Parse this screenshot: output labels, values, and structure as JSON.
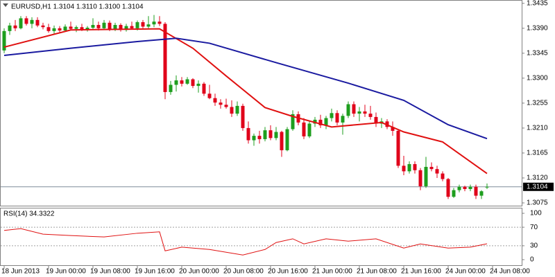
{
  "chart_data": [
    {
      "type": "candlestick",
      "header": "EURUSD,H1  1.3104 1.3110 1.3100 1.3104",
      "up_color": "#1e9e1e",
      "down_color": "#e0001a",
      "xlim": [
        -0.75,
        93.25
      ],
      "ylim": [
        1.307,
        1.3441
      ],
      "yticks": [
        {
          "value": 1.3435,
          "label": "1.3435"
        },
        {
          "value": 1.339,
          "label": "1.3390"
        },
        {
          "value": 1.3345,
          "label": "1.3345"
        },
        {
          "value": 1.33,
          "label": "1.3300"
        },
        {
          "value": 1.3255,
          "label": "1.3255"
        },
        {
          "value": 1.321,
          "label": "1.3210"
        },
        {
          "value": 1.3165,
          "label": "1.3165"
        },
        {
          "value": 1.312,
          "label": "1.3120"
        },
        {
          "value": 1.3075,
          "label": "1.3075"
        }
      ],
      "xticks": [
        {
          "value": 0,
          "label": "18 Jun 2013"
        },
        {
          "value": 8,
          "label": "19 Jun 00:00"
        },
        {
          "value": 16,
          "label": "19 Jun 08:00"
        },
        {
          "value": 24,
          "label": "19 Jun 16:00"
        },
        {
          "value": 32,
          "label": "20 Jun 00:00"
        },
        {
          "value": 40,
          "label": "20 Jun 08:00"
        },
        {
          "value": 48,
          "label": "20 Jun 16:00"
        },
        {
          "value": 56,
          "label": "21 Jun 00:00"
        },
        {
          "value": 64,
          "label": "21 Jun 08:00"
        },
        {
          "value": 72,
          "label": "21 Jun 16:00"
        },
        {
          "value": 80,
          "label": "24 Jun 00:00"
        },
        {
          "value": 88,
          "label": "24 Jun 08:00"
        }
      ],
      "current_price": 1.3104,
      "ohlc": [
        [
          1.335,
          1.339,
          1.3345,
          1.3385
        ],
        [
          1.3385,
          1.34,
          1.3378,
          1.3395
        ],
        [
          1.3395,
          1.3405,
          1.3385,
          1.339
        ],
        [
          1.339,
          1.3412,
          1.3388,
          1.3408
        ],
        [
          1.3408,
          1.3412,
          1.3395,
          1.3398
        ],
        [
          1.3398,
          1.341,
          1.339,
          1.3405
        ],
        [
          1.3405,
          1.341,
          1.3392,
          1.3395
        ],
        [
          1.3395,
          1.34,
          1.3388,
          1.3392
        ],
        [
          1.3392,
          1.3398,
          1.3382,
          1.3385
        ],
        [
          1.3385,
          1.3395,
          1.338,
          1.339
        ],
        [
          1.339,
          1.3394,
          1.3383,
          1.3386
        ],
        [
          1.3386,
          1.3397,
          1.3384,
          1.3393
        ],
        [
          1.3393,
          1.3402,
          1.3387,
          1.3389
        ],
        [
          1.3389,
          1.3395,
          1.3383,
          1.3392
        ],
        [
          1.3392,
          1.3398,
          1.3385,
          1.3388
        ],
        [
          1.3388,
          1.3394,
          1.3384,
          1.3391
        ],
        [
          1.3391,
          1.3408,
          1.3388,
          1.3396
        ],
        [
          1.3396,
          1.3402,
          1.3386,
          1.339
        ],
        [
          1.339,
          1.3405,
          1.3387,
          1.34
        ],
        [
          1.34,
          1.3404,
          1.3385,
          1.3388
        ],
        [
          1.3388,
          1.34,
          1.3385,
          1.3396
        ],
        [
          1.3396,
          1.3399,
          1.3384,
          1.3387
        ],
        [
          1.3387,
          1.3398,
          1.3384,
          1.3394
        ],
        [
          1.3394,
          1.3402,
          1.3388,
          1.339
        ],
        [
          1.339,
          1.3404,
          1.3386,
          1.3401
        ],
        [
          1.3401,
          1.3405,
          1.339,
          1.3393
        ],
        [
          1.3393,
          1.3412,
          1.339,
          1.3397
        ],
        [
          1.3397,
          1.3414,
          1.3392,
          1.3402
        ],
        [
          1.3402,
          1.3412,
          1.3394,
          1.3398
        ],
        [
          1.3398,
          1.3401,
          1.3262,
          1.3275
        ],
        [
          1.3275,
          1.3295,
          1.327,
          1.3288
        ],
        [
          1.3288,
          1.3305,
          1.3276,
          1.3296
        ],
        [
          1.3296,
          1.3302,
          1.3285,
          1.329
        ],
        [
          1.329,
          1.3302,
          1.3288,
          1.3298
        ],
        [
          1.3298,
          1.33,
          1.3282,
          1.3286
        ],
        [
          1.3286,
          1.3296,
          1.3274,
          1.329
        ],
        [
          1.329,
          1.3293,
          1.3268,
          1.3272
        ],
        [
          1.3272,
          1.3288,
          1.3262,
          1.3264
        ],
        [
          1.3264,
          1.3272,
          1.325,
          1.3256
        ],
        [
          1.3256,
          1.3262,
          1.3245,
          1.3252
        ],
        [
          1.3252,
          1.3263,
          1.3245,
          1.3248
        ],
        [
          1.3248,
          1.326,
          1.323,
          1.3236
        ],
        [
          1.3236,
          1.3258,
          1.3232,
          1.325
        ],
        [
          1.325,
          1.3254,
          1.3205,
          1.321
        ],
        [
          1.321,
          1.3222,
          1.3182,
          1.3188
        ],
        [
          1.3188,
          1.32,
          1.3178,
          1.3196
        ],
        [
          1.3196,
          1.3205,
          1.3182,
          1.319
        ],
        [
          1.319,
          1.3212,
          1.3186,
          1.3206
        ],
        [
          1.3206,
          1.3215,
          1.3188,
          1.3192
        ],
        [
          1.3192,
          1.3212,
          1.3188,
          1.3203
        ],
        [
          1.3203,
          1.3205,
          1.3158,
          1.317
        ],
        [
          1.317,
          1.3212,
          1.3168,
          1.3208
        ],
        [
          1.3208,
          1.3242,
          1.3205,
          1.3235
        ],
        [
          1.3235,
          1.324,
          1.3215,
          1.322
        ],
        [
          1.322,
          1.3228,
          1.319,
          1.3195
        ],
        [
          1.3195,
          1.3222,
          1.3192,
          1.3218
        ],
        [
          1.3218,
          1.323,
          1.3212,
          1.3225
        ],
        [
          1.3225,
          1.3234,
          1.321,
          1.3215
        ],
        [
          1.3215,
          1.3232,
          1.3208,
          1.3228
        ],
        [
          1.3228,
          1.3245,
          1.3222,
          1.3237
        ],
        [
          1.3237,
          1.3242,
          1.3215,
          1.322
        ],
        [
          1.322,
          1.3236,
          1.3198,
          1.3232
        ],
        [
          1.3232,
          1.3258,
          1.3228,
          1.3253
        ],
        [
          1.3253,
          1.3258,
          1.323,
          1.3236
        ],
        [
          1.3236,
          1.3248,
          1.3222,
          1.324
        ],
        [
          1.324,
          1.3252,
          1.323,
          1.3236
        ],
        [
          1.3236,
          1.325,
          1.3225,
          1.323
        ],
        [
          1.323,
          1.3238,
          1.3212,
          1.3218
        ],
        [
          1.3218,
          1.3228,
          1.321,
          1.3222
        ],
        [
          1.3222,
          1.3226,
          1.3208,
          1.3212
        ],
        [
          1.3212,
          1.3222,
          1.3196,
          1.3205
        ],
        [
          1.3205,
          1.3208,
          1.3138,
          1.3142
        ],
        [
          1.3142,
          1.316,
          1.3125,
          1.3132
        ],
        [
          1.3132,
          1.315,
          1.3128,
          1.3145
        ],
        [
          1.3145,
          1.315,
          1.3128,
          1.3134
        ],
        [
          1.3134,
          1.3138,
          1.3098,
          1.3105
        ],
        [
          1.3105,
          1.3158,
          1.3102,
          1.314
        ],
        [
          1.314,
          1.3148,
          1.3132,
          1.3136
        ],
        [
          1.3136,
          1.3142,
          1.312,
          1.3128
        ],
        [
          1.3128,
          1.3132,
          1.3114,
          1.3118
        ],
        [
          1.3118,
          1.312,
          1.3082,
          1.3086
        ],
        [
          1.3086,
          1.3102,
          1.3084,
          1.3098
        ],
        [
          1.3098,
          1.3108,
          1.3094,
          1.3104
        ],
        [
          1.3104,
          1.3106,
          1.3096,
          1.31
        ],
        [
          1.31,
          1.3108,
          1.3096,
          1.3104
        ],
        [
          1.3104,
          1.3108,
          1.3082,
          1.3088
        ],
        [
          1.3088,
          1.3098,
          1.3082,
          1.3096
        ],
        [
          1.3104,
          1.311,
          1.31,
          1.3104
        ]
      ],
      "lines": [
        {
          "color": "#e01010",
          "x": [
            0,
            12,
            28,
            34,
            40,
            47,
            52,
            59,
            68,
            72,
            79,
            87
          ],
          "values": [
            1.3356,
            1.3387,
            1.3389,
            1.3354,
            1.3304,
            1.3247,
            1.3231,
            1.3212,
            1.322,
            1.3203,
            1.3185,
            1.3128
          ]
        },
        {
          "color": "#1a1aa0",
          "x": [
            0,
            12,
            24,
            31,
            37,
            49,
            62,
            72,
            80,
            87
          ],
          "values": [
            1.3341,
            1.3354,
            1.3366,
            1.3372,
            1.3363,
            1.3328,
            1.3291,
            1.326,
            1.3216,
            1.3191
          ]
        }
      ]
    },
    {
      "type": "line",
      "label": "RSI(14) 34.3322",
      "ylim": [
        -12,
        112
      ],
      "yticks": [
        100,
        70,
        30,
        0
      ],
      "levels": [
        70,
        30
      ],
      "color": "#e01010",
      "x": [
        0,
        3,
        7,
        12,
        18,
        24,
        28,
        29,
        32,
        37,
        43,
        47,
        49,
        52,
        54,
        58,
        62,
        67,
        72,
        75,
        80,
        84,
        87
      ],
      "values": [
        63,
        67,
        55,
        52,
        49,
        57,
        60,
        19,
        27,
        22,
        10,
        22,
        37,
        45,
        34,
        45,
        40,
        45,
        25,
        34,
        25,
        27,
        34.3322
      ]
    }
  ]
}
